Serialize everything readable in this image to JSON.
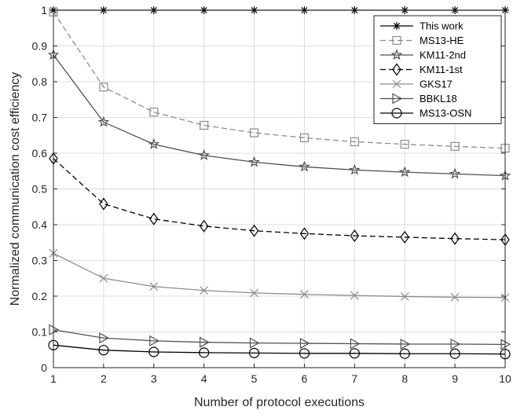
{
  "chart_data": {
    "type": "line",
    "xlabel": "Number of protocol executions",
    "ylabel": "Normalized communication cost efficiency",
    "xlim": [
      1,
      10
    ],
    "ylim": [
      0,
      1
    ],
    "xticks": [
      1,
      2,
      3,
      4,
      5,
      6,
      7,
      8,
      9,
      10
    ],
    "yticks": [
      0,
      0.1,
      0.2,
      0.3,
      0.4,
      0.5,
      0.6,
      0.7,
      0.8,
      0.9,
      1
    ],
    "grid": true,
    "legend_position": "top-right",
    "x": [
      1,
      2,
      3,
      4,
      5,
      6,
      7,
      8,
      9,
      10
    ],
    "series": [
      {
        "name": "This work",
        "color": "#000000",
        "dash": "solid",
        "marker": "asterisk",
        "values": [
          1,
          1,
          1,
          1,
          1,
          1,
          1,
          1,
          1,
          1
        ]
      },
      {
        "name": "MS13-HE",
        "color": "#8c8c8c",
        "dash": "dashed",
        "marker": "square",
        "values": [
          0.995,
          0.785,
          0.715,
          0.678,
          0.657,
          0.643,
          0.632,
          0.625,
          0.619,
          0.614
        ]
      },
      {
        "name": "KM11-2nd",
        "color": "#505050",
        "dash": "solid",
        "marker": "star",
        "values": [
          0.875,
          0.687,
          0.625,
          0.594,
          0.575,
          0.562,
          0.553,
          0.547,
          0.542,
          0.537
        ]
      },
      {
        "name": "KM11-1st",
        "color": "#000000",
        "dash": "dashed",
        "marker": "diamond",
        "values": [
          0.585,
          0.458,
          0.416,
          0.396,
          0.383,
          0.375,
          0.369,
          0.365,
          0.361,
          0.358
        ]
      },
      {
        "name": "GKS17",
        "color": "#8c8c8c",
        "dash": "solid",
        "marker": "cross",
        "values": [
          0.32,
          0.25,
          0.227,
          0.216,
          0.209,
          0.205,
          0.202,
          0.199,
          0.197,
          0.196
        ]
      },
      {
        "name": "BBKL18",
        "color": "#505050",
        "dash": "solid",
        "marker": "triangle-right",
        "values": [
          0.106,
          0.083,
          0.075,
          0.071,
          0.069,
          0.068,
          0.067,
          0.066,
          0.066,
          0.065
        ]
      },
      {
        "name": "MS13-OSN",
        "color": "#000000",
        "dash": "solid",
        "marker": "circle",
        "values": [
          0.063,
          0.049,
          0.044,
          0.042,
          0.041,
          0.04,
          0.04,
          0.039,
          0.039,
          0.038
        ]
      }
    ]
  }
}
